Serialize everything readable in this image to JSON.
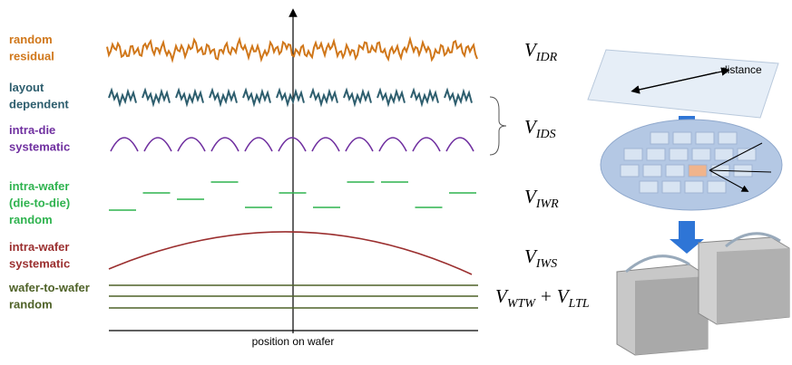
{
  "labels": [
    {
      "lines": [
        "random",
        "residual"
      ]
    },
    {
      "lines": [
        "layout",
        "dependent"
      ]
    },
    {
      "lines": [
        "intra-die",
        "systematic"
      ]
    },
    {
      "lines": [
        "intra-wafer",
        "(die-to-die)",
        "random"
      ]
    },
    {
      "lines": [
        "intra-wafer",
        "systematic"
      ]
    },
    {
      "lines": [
        "wafer-to-wafer",
        "random"
      ]
    }
  ],
  "axis_label": "position on wafer",
  "formulas": [
    {
      "terms": [
        {
          "base": "V",
          "sub": "IDR"
        }
      ]
    },
    {
      "terms": [
        {
          "base": "V",
          "sub": "IDS"
        }
      ]
    },
    {
      "terms": [
        {
          "base": "V",
          "sub": "IWR"
        }
      ]
    },
    {
      "terms": [
        {
          "base": "V",
          "sub": "IWS"
        }
      ]
    },
    {
      "terms": [
        {
          "base": "V",
          "sub": "WTW"
        },
        {
          "base": "V",
          "sub": "LTL"
        }
      ],
      "operator": "+"
    }
  ],
  "illustration": {
    "distance_label": "distance"
  }
}
